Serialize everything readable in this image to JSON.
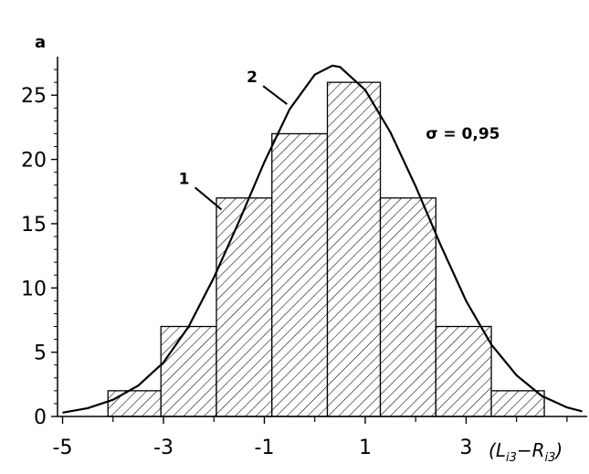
{
  "chart_data": {
    "type": "bar",
    "panel_label": "a",
    "x_label": {
      "l": "L",
      "l_sub": "i3",
      "sep": "−",
      "r": "R",
      "r_sub": "i3"
    },
    "xlim": [
      -5.1,
      5.4
    ],
    "ylim": [
      0,
      28
    ],
    "x_ticks": [
      -5,
      -3,
      -1,
      1,
      3
    ],
    "x_tick_labels": [
      "-5",
      "-3",
      "-1",
      "1",
      "3"
    ],
    "x_minor_ticks": [
      -4,
      -2,
      0,
      2,
      4,
      5
    ],
    "y_ticks": [
      0,
      5,
      10,
      15,
      20,
      25
    ],
    "y_tick_labels": [
      "0",
      "5",
      "10",
      "15",
      "20",
      "25"
    ],
    "bins": [
      {
        "x0": -4.1,
        "x1": -3.05,
        "value": 2
      },
      {
        "x0": -3.05,
        "x1": -1.95,
        "value": 7
      },
      {
        "x0": -1.95,
        "x1": -0.85,
        "value": 17
      },
      {
        "x0": -0.85,
        "x1": 0.25,
        "value": 22
      },
      {
        "x0": 0.25,
        "x1": 1.3,
        "value": 26
      },
      {
        "x0": 1.3,
        "x1": 2.4,
        "value": 17
      },
      {
        "x0": 2.4,
        "x1": 3.5,
        "value": 7
      },
      {
        "x0": 3.5,
        "x1": 4.55,
        "value": 2
      }
    ],
    "fit_curve": {
      "mean": 0.35,
      "peak": 27.3,
      "x": [
        -5.0,
        -4.5,
        -4.0,
        -3.5,
        -3.0,
        -2.5,
        -2.0,
        -1.5,
        -1.0,
        -0.5,
        0.0,
        0.35,
        0.5,
        1.0,
        1.5,
        2.0,
        2.5,
        3.0,
        3.5,
        4.0,
        4.5,
        5.0,
        5.3
      ],
      "y": [
        0.3,
        0.65,
        1.3,
        2.4,
        4.2,
        7.0,
        10.8,
        15.2,
        19.8,
        23.9,
        26.6,
        27.3,
        27.2,
        25.4,
        22.1,
        17.9,
        13.3,
        9.0,
        5.6,
        3.2,
        1.6,
        0.7,
        0.4
      ]
    },
    "annotations": [
      {
        "text": "1",
        "x": -2.7,
        "y": 18.1,
        "arrow_to": [
          -1.85,
          16.1
        ]
      },
      {
        "text": "2",
        "x": -1.35,
        "y": 26.0,
        "arrow_to": [
          -0.55,
          24.3
        ]
      },
      {
        "text": "σ = 0,95",
        "x": 2.2,
        "y": 21.6
      }
    ]
  }
}
